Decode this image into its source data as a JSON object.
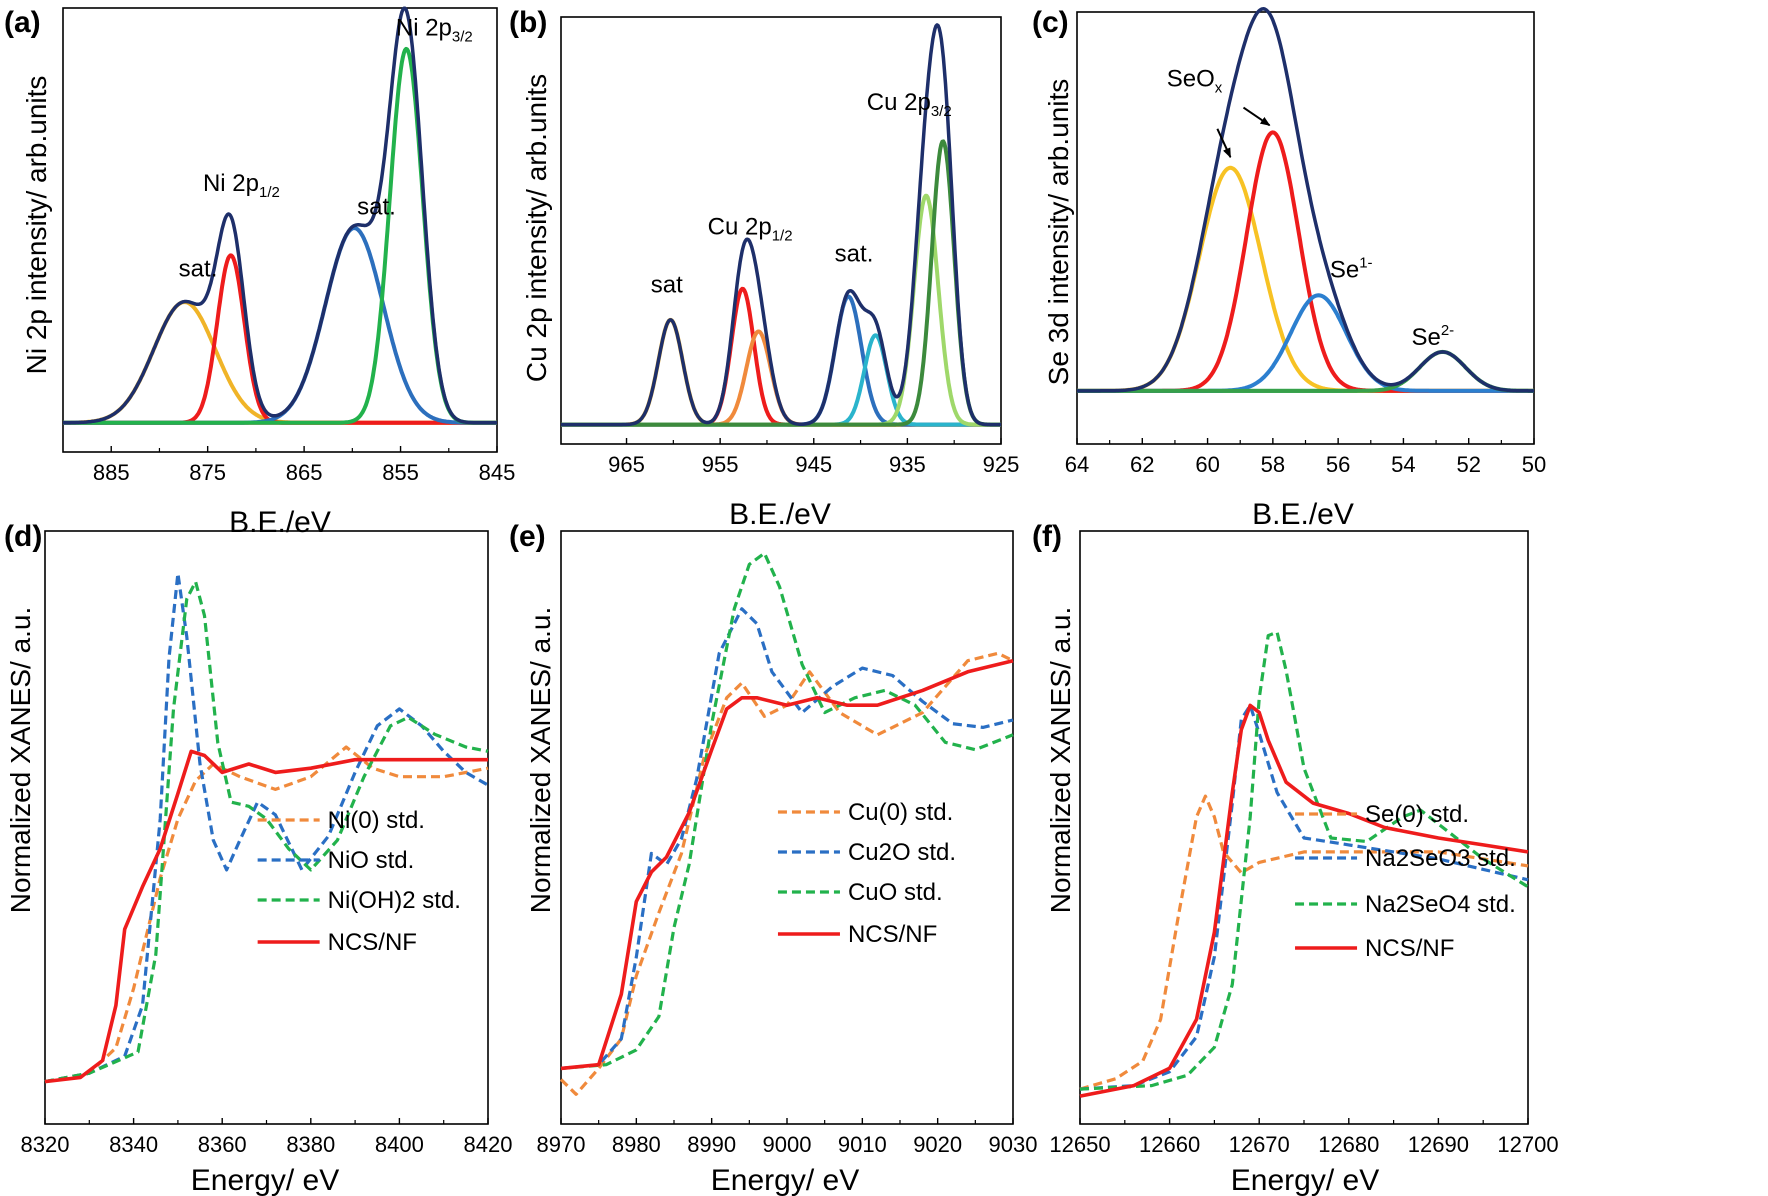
{
  "chart_data": [
    {
      "panel": "(a)",
      "type": "line",
      "xlabel": "B.E./eV",
      "ylabel": "Ni 2p intensity/ arb.units",
      "xlim": [
        890,
        845
      ],
      "xticks": [
        885,
        875,
        865,
        855,
        845
      ],
      "ylim": [
        -0.07,
        1.07
      ],
      "annotations": [
        {
          "text": "sat.",
          "x": 876,
          "y": 0.38
        },
        {
          "text": "Ni 2p",
          "sub": "1/2",
          "x": 871.5,
          "y": 0.6
        },
        {
          "text": "sat.",
          "x": 857.5,
          "y": 0.54
        },
        {
          "text": "Ni 2p",
          "sub": "3/2",
          "x": 851.5,
          "y": 1.0
        }
      ],
      "peaks": [
        {
          "color": "#f0b428",
          "c": 877.4,
          "w": 3.2,
          "a": 0.31
        },
        {
          "color": "#ee1c1c",
          "c": 872.6,
          "w": 1.4,
          "a": 0.43
        },
        {
          "color": "#2c6fbd",
          "c": 859.8,
          "w": 3.0,
          "a": 0.5
        },
        {
          "color": "#22b24c",
          "c": 854.4,
          "w": 1.7,
          "a": 0.96
        }
      ],
      "envelope_color": "#1e2f6a",
      "baseline_color": "#ee1c1c",
      "baseline": 0.005
    },
    {
      "panel": "(b)",
      "type": "line",
      "xlabel": "B.E./eV",
      "ylabel": "Cu 2p intensity/ arb.units",
      "xlim": [
        972,
        925
      ],
      "xticks": [
        965,
        955,
        945,
        935,
        925
      ],
      "ylim": [
        -0.05,
        1.05
      ],
      "annotations": [
        {
          "text": "sat",
          "x": 960.7,
          "y": 0.34
        },
        {
          "text": "Cu 2p",
          "sub": "1/2",
          "x": 951.8,
          "y": 0.49
        },
        {
          "text": "sat.",
          "x": 940.7,
          "y": 0.42
        },
        {
          "text": "Cu 2p",
          "sub": "3/2",
          "x": 934.8,
          "y": 0.81
        }
      ],
      "peaks": [
        {
          "color": "#f0b428",
          "c": 960.3,
          "w": 1.3,
          "a": 0.27
        },
        {
          "color": "#ee1c1c",
          "c": 952.6,
          "w": 1.2,
          "a": 0.35
        },
        {
          "color": "#f08a3c",
          "c": 950.9,
          "w": 1.3,
          "a": 0.24
        },
        {
          "color": "#2c6fbd",
          "c": 941.3,
          "w": 1.4,
          "a": 0.33
        },
        {
          "color": "#2ab4cc",
          "c": 938.4,
          "w": 1.2,
          "a": 0.23
        },
        {
          "color": "#9fd86a",
          "c": 933.0,
          "w": 1.3,
          "a": 0.59
        },
        {
          "color": "#3c8a3c",
          "c": 931.2,
          "w": 1.2,
          "a": 0.73
        }
      ],
      "envelope_color": "#1e2f6a",
      "baseline_color": "#22b24c",
      "baseline": 0.0
    },
    {
      "panel": "(c)",
      "type": "line",
      "xlabel": "B.E./eV",
      "ylabel": "Se 3d intensity/ arb.units",
      "xlim": [
        64,
        50
      ],
      "xticks": [
        64,
        62,
        60,
        58,
        56,
        54,
        52,
        50
      ],
      "ylim": [
        -0.15,
        1.07
      ],
      "annotations": [
        {
          "text": "SeO",
          "sub": "x",
          "x": 60.4,
          "y": 0.86
        },
        {
          "text": "Se",
          "sup": "1-",
          "x": 55.6,
          "y": 0.32
        },
        {
          "text": "Se",
          "sup": "2-",
          "x": 53.1,
          "y": 0.13
        }
      ],
      "arrows": [
        {
          "from": [
            59.7,
            0.74
          ],
          "to": [
            59.3,
            0.66
          ]
        },
        {
          "from": [
            58.9,
            0.8
          ],
          "to": [
            58.1,
            0.75
          ]
        }
      ],
      "peaks": [
        {
          "color": "#f7c224",
          "c": 59.3,
          "w": 0.95,
          "a": 0.63
        },
        {
          "color": "#ee1c1c",
          "c": 58.0,
          "w": 0.8,
          "a": 0.73
        },
        {
          "color": "#2c7fcf",
          "c": 56.6,
          "w": 0.85,
          "a": 0.27
        },
        {
          "color": "#37a04a",
          "c": 52.8,
          "w": 0.7,
          "a": 0.11
        }
      ],
      "envelope_color": "#1e2f6a",
      "baseline_color": "#22b24c",
      "baseline": 0.0
    },
    {
      "panel": "(d)",
      "type": "line",
      "xlabel": "Energy/ eV",
      "ylabel": "Normalized XANES/ a.u.",
      "xlim": [
        8320,
        8420
      ],
      "xticks": [
        8320,
        8340,
        8360,
        8380,
        8400,
        8420
      ],
      "ylim": [
        -0.1,
        1.3
      ],
      "legend": "lower-right",
      "series": [
        {
          "name": "Ni(0) std.",
          "color": "#f08a3c",
          "dash": true,
          "x": [
            8320,
            8330,
            8336,
            8340,
            8343,
            8346,
            8350,
            8354,
            8358,
            8364,
            8372,
            8380,
            8388,
            8394,
            8400,
            8410,
            8420
          ],
          "y": [
            0.0,
            0.02,
            0.08,
            0.22,
            0.35,
            0.48,
            0.62,
            0.71,
            0.75,
            0.72,
            0.69,
            0.72,
            0.79,
            0.74,
            0.72,
            0.72,
            0.74
          ]
        },
        {
          "name": "NiO std.",
          "color": "#2a6fc4",
          "dash": true,
          "x": [
            8320,
            8330,
            8338,
            8342,
            8346,
            8348,
            8350,
            8352,
            8355,
            8358,
            8361,
            8364,
            8368,
            8372,
            8378,
            8384,
            8390,
            8395,
            8400,
            8405,
            8410,
            8415,
            8420
          ],
          "y": [
            0.0,
            0.02,
            0.06,
            0.18,
            0.62,
            1.0,
            1.2,
            1.05,
            0.75,
            0.57,
            0.5,
            0.57,
            0.66,
            0.63,
            0.5,
            0.58,
            0.73,
            0.84,
            0.88,
            0.84,
            0.78,
            0.73,
            0.7
          ]
        },
        {
          "name": "Ni(OH)2 std.",
          "color": "#22b24c",
          "dash": true,
          "x": [
            8320,
            8330,
            8341,
            8345,
            8349,
            8352,
            8354,
            8356,
            8359,
            8362,
            8366,
            8370,
            8375,
            8380,
            8386,
            8392,
            8398,
            8402,
            8408,
            8415,
            8420
          ],
          "y": [
            0.0,
            0.02,
            0.07,
            0.3,
            0.88,
            1.14,
            1.18,
            1.1,
            0.8,
            0.66,
            0.65,
            0.62,
            0.55,
            0.5,
            0.57,
            0.72,
            0.84,
            0.86,
            0.82,
            0.79,
            0.78
          ]
        },
        {
          "name": "NCS/NF",
          "color": "#ee1c1c",
          "dash": false,
          "x": [
            8320,
            8328,
            8333,
            8336,
            8338,
            8342,
            8346,
            8350,
            8353,
            8356,
            8360,
            8366,
            8372,
            8380,
            8390,
            8400,
            8410,
            8420
          ],
          "y": [
            0.0,
            0.01,
            0.05,
            0.18,
            0.36,
            0.46,
            0.55,
            0.68,
            0.78,
            0.77,
            0.73,
            0.75,
            0.73,
            0.74,
            0.76,
            0.76,
            0.76,
            0.76
          ]
        }
      ]
    },
    {
      "panel": "(e)",
      "type": "line",
      "xlabel": "Energy/ eV",
      "ylabel": "Normalized XANES/ a.u.",
      "xlim": [
        8970,
        9030
      ],
      "xticks": [
        8970,
        8980,
        8990,
        9000,
        9010,
        9020,
        9030
      ],
      "ylim": [
        -0.15,
        1.45
      ],
      "legend": "lower-right",
      "series": [
        {
          "name": "Cu(0) std.",
          "color": "#f08a3c",
          "dash": true,
          "x": [
            8970,
            8972,
            8975,
            8978,
            8980,
            8983,
            8986,
            8989,
            8992,
            8994,
            8997,
            9000,
            9003,
            9007,
            9012,
            9018,
            9024,
            9028,
            9030
          ],
          "y": [
            -0.03,
            -0.07,
            0.0,
            0.08,
            0.25,
            0.42,
            0.58,
            0.84,
            1.0,
            1.04,
            0.95,
            0.98,
            1.07,
            0.96,
            0.9,
            0.96,
            1.1,
            1.12,
            1.1
          ]
        },
        {
          "name": "Cu2O std.",
          "color": "#2a6fc4",
          "dash": true,
          "x": [
            8970,
            8975,
            8978,
            8980,
            8982,
            8984,
            8986,
            8988,
            8991,
            8994,
            8996,
            8998,
            9002,
            9006,
            9010,
            9014,
            9018,
            9022,
            9026,
            9030
          ],
          "y": [
            0.0,
            0.01,
            0.08,
            0.3,
            0.58,
            0.55,
            0.62,
            0.78,
            1.12,
            1.24,
            1.2,
            1.07,
            0.96,
            1.03,
            1.08,
            1.06,
            0.99,
            0.93,
            0.92,
            0.94
          ]
        },
        {
          "name": "CuO std.",
          "color": "#22b24c",
          "dash": true,
          "x": [
            8970,
            8976,
            8980,
            8983,
            8985,
            8987,
            8990,
            8993,
            8995,
            8997,
            8999,
            9002,
            9005,
            9009,
            9013,
            9017,
            9021,
            9025,
            9030
          ],
          "y": [
            0.0,
            0.01,
            0.05,
            0.14,
            0.38,
            0.55,
            0.93,
            1.24,
            1.36,
            1.39,
            1.3,
            1.09,
            0.96,
            1.0,
            1.02,
            0.98,
            0.88,
            0.86,
            0.9
          ]
        },
        {
          "name": "NCS/NF",
          "color": "#ee1c1c",
          "dash": false,
          "x": [
            8970,
            8975,
            8978,
            8980,
            8982,
            8984,
            8987,
            8990,
            8992,
            8994,
            8996,
            9000,
            9004,
            9008,
            9012,
            9018,
            9024,
            9030
          ],
          "y": [
            0.0,
            0.01,
            0.2,
            0.45,
            0.53,
            0.57,
            0.69,
            0.86,
            0.97,
            1.0,
            1.0,
            0.98,
            1.0,
            0.98,
            0.98,
            1.02,
            1.07,
            1.1
          ]
        }
      ]
    },
    {
      "panel": "(f)",
      "type": "line",
      "xlabel": "Energy/ eV",
      "ylabel": "Normalized XANES/ a.u.",
      "xlim": [
        12650,
        12700
      ],
      "xticks": [
        12650,
        12660,
        12670,
        12680,
        12690,
        12700
      ],
      "ylim": [
        -0.1,
        1.6
      ],
      "legend": "lower-right",
      "series": [
        {
          "name": "Se(0) std.",
          "color": "#f08a3c",
          "dash": true,
          "x": [
            12650,
            12654,
            12657,
            12659,
            12661,
            12663,
            12664,
            12665,
            12666,
            12668,
            12670,
            12675,
            12680,
            12685,
            12690,
            12695,
            12700
          ],
          "y": [
            0.0,
            0.03,
            0.08,
            0.2,
            0.5,
            0.78,
            0.84,
            0.78,
            0.68,
            0.62,
            0.65,
            0.68,
            0.68,
            0.68,
            0.68,
            0.66,
            0.64
          ]
        },
        {
          "name": "Na2SeO3  std.",
          "color": "#2a6fc4",
          "dash": true,
          "x": [
            12650,
            12656,
            12660,
            12663,
            12665,
            12667,
            12668,
            12669,
            12670,
            12672,
            12675,
            12680,
            12685,
            12690,
            12695,
            12700
          ],
          "y": [
            0.0,
            0.01,
            0.05,
            0.15,
            0.38,
            0.82,
            1.06,
            1.1,
            1.02,
            0.85,
            0.72,
            0.7,
            0.68,
            0.66,
            0.63,
            0.6
          ]
        },
        {
          "name": "Na2SeO4 std.",
          "color": "#22b24c",
          "dash": true,
          "x": [
            12650,
            12658,
            12662,
            12665,
            12667,
            12669,
            12670,
            12671,
            12672,
            12673,
            12675,
            12678,
            12682,
            12686,
            12688,
            12690,
            12695,
            12700
          ],
          "y": [
            0.0,
            0.01,
            0.04,
            0.12,
            0.3,
            0.78,
            1.12,
            1.3,
            1.31,
            1.2,
            0.92,
            0.72,
            0.71,
            0.78,
            0.8,
            0.76,
            0.66,
            0.58
          ]
        },
        {
          "name": "NCS/NF",
          "color": "#ee1c1c",
          "dash": false,
          "x": [
            12650,
            12656,
            12660,
            12663,
            12665,
            12667,
            12668,
            12669,
            12670,
            12671,
            12673,
            12676,
            12680,
            12684,
            12690,
            12695,
            12700
          ],
          "y": [
            -0.02,
            0.01,
            0.06,
            0.2,
            0.45,
            0.85,
            1.03,
            1.1,
            1.08,
            1.0,
            0.88,
            0.82,
            0.79,
            0.75,
            0.72,
            0.7,
            0.68
          ]
        }
      ]
    }
  ]
}
